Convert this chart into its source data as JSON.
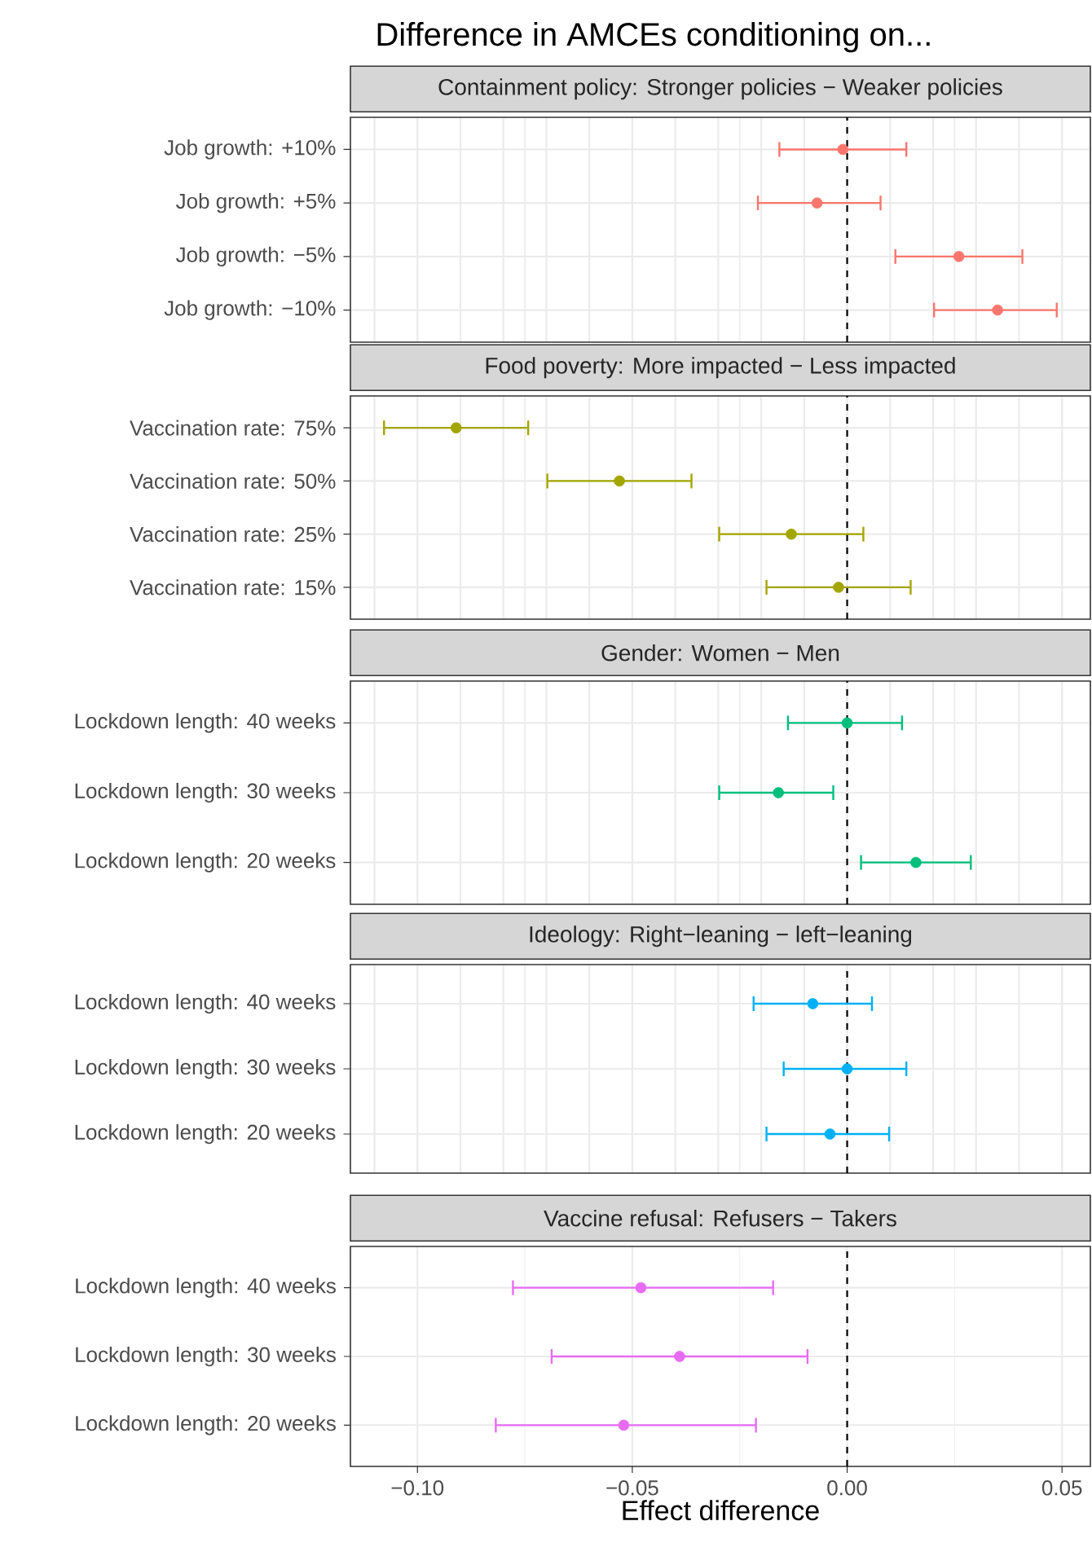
{
  "chart_data": [
    {
      "type": "scatter",
      "orientation": "horizontal",
      "title": "Containment policy: Stronger policies − Weaker policies",
      "annotations": [
        "Difference in AMCEs conditioning on..."
      ],
      "categories": [
        "Job growth: +10%",
        "Job growth: +5%",
        "Job growth: −5%",
        "Job growth: −10%"
      ],
      "values": [
        -0.001,
        -0.007,
        0.026,
        0.035
      ],
      "errors": [
        [
          -0.016,
          0.014
        ],
        [
          -0.021,
          0.008
        ],
        [
          0.011,
          0.041
        ],
        [
          0.02,
          0.049
        ]
      ],
      "color": "#f8766d",
      "xlim": [
        -0.1156,
        0.0566
      ],
      "xticks": [
        {
          "value": -0.1,
          "label": null
        },
        {
          "value": -0.075,
          "label": null
        },
        {
          "value": -0.05,
          "label": null
        },
        {
          "value": -0.025,
          "label": null
        },
        {
          "value": 0,
          "label": null
        },
        {
          "value": 0.025,
          "label": null
        },
        {
          "value": 0.05,
          "label": null
        }
      ],
      "ref_lines": [
        {
          "axis": "x",
          "value": 0,
          "line_style": "dashed",
          "color": "#000000"
        }
      ],
      "grid": true,
      "marker": "circle",
      "tick_labels": "y"
    },
    {
      "type": "scatter",
      "orientation": "horizontal",
      "title": "Food poverty: More impacted − Less impacted",
      "categories": [
        "Vaccination rate: 75%",
        "Vaccination rate: 50%",
        "Vaccination rate: 25%",
        "Vaccination rate: 15%"
      ],
      "values": [
        -0.091,
        -0.053,
        -0.013,
        -0.002
      ],
      "errors": [
        [
          -0.108,
          -0.074
        ],
        [
          -0.07,
          -0.036
        ],
        [
          -0.03,
          0.004
        ],
        [
          -0.019,
          0.015
        ]
      ],
      "color": "#a3a500",
      "xlim": [
        -0.1156,
        0.0566
      ],
      "xticks": [
        {
          "value": -0.1,
          "label": null
        },
        {
          "value": -0.075,
          "label": null
        },
        {
          "value": -0.05,
          "label": null
        },
        {
          "value": -0.025,
          "label": null
        },
        {
          "value": 0,
          "label": null
        },
        {
          "value": 0.025,
          "label": null
        },
        {
          "value": 0.05,
          "label": null
        }
      ],
      "ref_lines": [
        {
          "axis": "x",
          "value": 0,
          "line_style": "dashed",
          "color": "#000000"
        }
      ],
      "grid": true,
      "marker": "circle",
      "tick_labels": "y"
    },
    {
      "type": "scatter",
      "orientation": "horizontal",
      "title": "Gender: Women − Men",
      "categories": [
        "Lockdown length: 40 weeks",
        "Lockdown length: 30 weeks",
        "Lockdown length: 20 weeks"
      ],
      "values": [
        0.0,
        -0.016,
        0.016
      ],
      "errors": [
        [
          -0.014,
          0.013
        ],
        [
          -0.03,
          -0.003
        ],
        [
          0.003,
          0.029
        ]
      ],
      "color": "#00bf7d",
      "xlim": [
        -0.1156,
        0.0566
      ],
      "xticks": [
        {
          "value": -0.1,
          "label": null
        },
        {
          "value": -0.075,
          "label": null
        },
        {
          "value": -0.05,
          "label": null
        },
        {
          "value": -0.025,
          "label": null
        },
        {
          "value": 0,
          "label": null
        },
        {
          "value": 0.025,
          "label": null
        },
        {
          "value": 0.05,
          "label": null
        }
      ],
      "ref_lines": [
        {
          "axis": "x",
          "value": 0,
          "line_style": "dashed",
          "color": "#000000"
        }
      ],
      "grid": true,
      "marker": "circle",
      "tick_labels": "y"
    },
    {
      "type": "scatter",
      "orientation": "horizontal",
      "title": "Ideology: Right−leaning − left−leaning",
      "categories": [
        "Lockdown length: 40 weeks",
        "Lockdown length: 30 weeks",
        "Lockdown length: 20 weeks"
      ],
      "values": [
        -0.008,
        0.0,
        -0.004
      ],
      "errors": [
        [
          -0.022,
          0.006
        ],
        [
          -0.015,
          0.014
        ],
        [
          -0.019,
          0.01
        ]
      ],
      "color": "#00b0f6",
      "xlim": [
        -0.1156,
        0.0566
      ],
      "xticks": [
        {
          "value": -0.1,
          "label": null
        },
        {
          "value": -0.075,
          "label": null
        },
        {
          "value": -0.05,
          "label": null
        },
        {
          "value": -0.025,
          "label": null
        },
        {
          "value": 0,
          "label": null
        },
        {
          "value": 0.025,
          "label": null
        },
        {
          "value": 0.05,
          "label": null
        }
      ],
      "ref_lines": [
        {
          "axis": "x",
          "value": 0,
          "line_style": "dashed",
          "color": "#000000"
        }
      ],
      "grid": true,
      "marker": "circle",
      "tick_labels": "y"
    },
    {
      "type": "scatter",
      "orientation": "horizontal",
      "title": "Vaccine refusal: Refusers − Takers",
      "xlabel": "Effect difference",
      "categories": [
        "Lockdown length: 40 weeks",
        "Lockdown length: 30 weeks",
        "Lockdown length: 20 weeks"
      ],
      "values": [
        -0.048,
        -0.039,
        -0.052
      ],
      "errors": [
        [
          -0.078,
          -0.017
        ],
        [
          -0.069,
          -0.009
        ],
        [
          -0.082,
          -0.021
        ]
      ],
      "color": "#e76bf3",
      "xlim": [
        -0.1156,
        0.0566
      ],
      "xticks": [
        {
          "value": -0.1,
          "label": "−0.10"
        },
        {
          "value": -0.075,
          "label": null
        },
        {
          "value": -0.05,
          "label": "−0.05"
        },
        {
          "value": -0.025,
          "label": null
        },
        {
          "value": 0,
          "label": "0.00"
        },
        {
          "value": 0.025,
          "label": null
        },
        {
          "value": 0.05,
          "label": "0.05"
        }
      ],
      "ref_lines": [
        {
          "axis": "x",
          "value": 0,
          "line_style": "dashed",
          "color": "#000000"
        }
      ],
      "grid": true,
      "marker": "circle"
    }
  ]
}
